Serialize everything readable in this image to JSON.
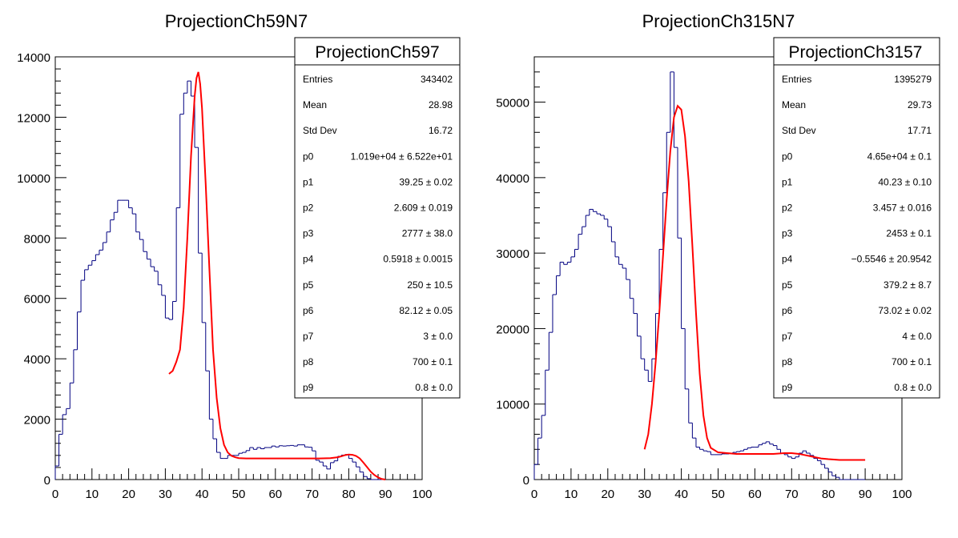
{
  "chart_data": [
    {
      "type": "histogram",
      "title": "ProjectionCh59N7",
      "xlim": [
        0,
        100
      ],
      "ylim": [
        0,
        14000
      ],
      "xticks": [
        "0",
        "10",
        "20",
        "30",
        "40",
        "50",
        "60",
        "70",
        "80",
        "90",
        "100"
      ],
      "yticks": [
        "0",
        "2000",
        "4000",
        "6000",
        "8000",
        "10000",
        "12000",
        "14000"
      ],
      "bin_width": 1,
      "series": [
        {
          "values": [
            450,
            1500,
            2150,
            2350,
            3200,
            4300,
            5550,
            6600,
            6950,
            7100,
            7250,
            7450,
            7600,
            7850,
            8200,
            8600,
            8850,
            9250,
            9250,
            9250,
            9000,
            8800,
            8200,
            7950,
            7550,
            7300,
            7050,
            6900,
            6450,
            6100,
            5350,
            5300,
            5900,
            9000,
            12100,
            12800,
            13200,
            12700,
            11000,
            7500,
            5200,
            3600,
            2000,
            1350,
            900,
            700,
            700,
            800,
            800,
            800,
            870,
            900,
            960,
            1060,
            1000,
            1060,
            1020,
            1060,
            1060,
            1110,
            1080,
            1120,
            1110,
            1120,
            1130,
            1110,
            1150,
            1150,
            1080,
            1070,
            950,
            640,
            580,
            450,
            350,
            560,
            620,
            770,
            810,
            830,
            700,
            580,
            420,
            250,
            100,
            30,
            0,
            0,
            0,
            0
          ]
        },
        {
          "name": "fit",
          "x": [
            31,
            32,
            33,
            34,
            35,
            36,
            37,
            38,
            38.5,
            39,
            39.5,
            40,
            41,
            42,
            43,
            44,
            45,
            46,
            47,
            48,
            49,
            50,
            52,
            55,
            60,
            65,
            70,
            72,
            75,
            77,
            78,
            79,
            80,
            81,
            82,
            83,
            84,
            85,
            86,
            87,
            88,
            89,
            90
          ],
          "values": [
            3500,
            3600,
            3900,
            4300,
            5700,
            8000,
            10700,
            12700,
            13300,
            13500,
            13100,
            12300,
            9800,
            7000,
            4300,
            2700,
            1700,
            1150,
            900,
            790,
            740,
            710,
            700,
            700,
            700,
            700,
            700,
            700,
            710,
            740,
            770,
            810,
            830,
            820,
            780,
            700,
            560,
            410,
            260,
            150,
            70,
            20,
            0
          ]
        }
      ],
      "stats": {
        "title": "ProjectionCh597",
        "rows": [
          {
            "label": "Entries",
            "value": "343402"
          },
          {
            "label": "Mean",
            "value": "28.98"
          },
          {
            "label": "Std Dev",
            "value": "16.72"
          },
          {
            "label": "p0",
            "value": "1.019e+04 ± 6.522e+01"
          },
          {
            "label": "p1",
            "value": "39.25 ± 0.02"
          },
          {
            "label": "p2",
            "value": "2.609 ± 0.019"
          },
          {
            "label": "p3",
            "value": "2777 ± 38.0"
          },
          {
            "label": "p4",
            "value": "0.5918 ± 0.0015"
          },
          {
            "label": "p5",
            "value": "250 ± 10.5"
          },
          {
            "label": "p6",
            "value": "82.12 ± 0.05"
          },
          {
            "label": "p7",
            "value": "3 ± 0.0"
          },
          {
            "label": "p8",
            "value": "700 ± 0.1"
          },
          {
            "label": "p9",
            "value": "0.8 ± 0.0"
          }
        ]
      },
      "colors": {
        "histogram": "#000080",
        "fit": "#ff0000"
      }
    },
    {
      "type": "histogram",
      "title": "ProjectionCh315N7",
      "xlim": [
        0,
        100
      ],
      "ylim": [
        0,
        56000
      ],
      "xticks": [
        "0",
        "10",
        "20",
        "30",
        "40",
        "50",
        "60",
        "70",
        "80",
        "90",
        "100"
      ],
      "yticks": [
        "0",
        "10000",
        "20000",
        "30000",
        "40000",
        "50000"
      ],
      "bin_width": 1,
      "series": [
        {
          "values": [
            2000,
            5500,
            8500,
            14500,
            19500,
            24500,
            27000,
            28800,
            28500,
            28800,
            29500,
            30500,
            32500,
            33500,
            35000,
            35800,
            35500,
            35200,
            35000,
            34500,
            33500,
            31500,
            29500,
            28500,
            28000,
            26500,
            24000,
            22000,
            19000,
            16000,
            14500,
            13000,
            16000,
            22000,
            30500,
            38000,
            46000,
            54000,
            44000,
            32000,
            20000,
            12000,
            7500,
            5500,
            4300,
            4000,
            3800,
            3700,
            3300,
            3300,
            3300,
            3400,
            3400,
            3500,
            3600,
            3700,
            3800,
            4000,
            4200,
            4300,
            4300,
            4600,
            4800,
            5000,
            4700,
            4500,
            4000,
            3500,
            3300,
            3000,
            2800,
            3000,
            3500,
            3800,
            3500,
            3200,
            2800,
            2500,
            2000,
            1500,
            1000,
            500,
            300,
            0,
            0,
            0,
            0,
            0,
            0,
            0
          ]
        },
        {
          "name": "fit",
          "x": [
            30,
            31,
            32,
            33,
            34,
            35,
            36,
            37,
            38,
            39,
            40,
            41,
            42,
            43,
            44,
            45,
            46,
            47,
            48,
            50,
            55,
            60,
            65,
            68,
            70,
            72,
            75,
            78,
            80,
            83,
            85,
            88,
            90
          ],
          "values": [
            4000,
            6000,
            10000,
            15500,
            22000,
            29500,
            37000,
            43500,
            48000,
            49500,
            49000,
            45500,
            39500,
            31000,
            22000,
            14000,
            8500,
            5500,
            4200,
            3600,
            3400,
            3400,
            3400,
            3500,
            3500,
            3400,
            3100,
            2800,
            2700,
            2600,
            2600,
            2600,
            2600
          ]
        }
      ],
      "stats": {
        "title": "ProjectionCh3157",
        "rows": [
          {
            "label": "Entries",
            "value": "1395279"
          },
          {
            "label": "Mean",
            "value": "29.73"
          },
          {
            "label": "Std Dev",
            "value": "17.71"
          },
          {
            "label": "p0",
            "value": "4.65e+04 ± 0.1"
          },
          {
            "label": "p1",
            "value": "40.23 ± 0.10"
          },
          {
            "label": "p2",
            "value": "3.457 ± 0.016"
          },
          {
            "label": "p3",
            "value": "2453 ± 0.1"
          },
          {
            "label": "p4",
            "value": "−0.5546 ± 20.9542"
          },
          {
            "label": "p5",
            "value": "379.2 ± 8.7"
          },
          {
            "label": "p6",
            "value": "73.02 ± 0.02"
          },
          {
            "label": "p7",
            "value": "4 ± 0.0"
          },
          {
            "label": "p8",
            "value": "700 ± 0.1"
          },
          {
            "label": "p9",
            "value": "0.8 ± 0.0"
          }
        ]
      },
      "colors": {
        "histogram": "#000080",
        "fit": "#ff0000"
      }
    }
  ]
}
